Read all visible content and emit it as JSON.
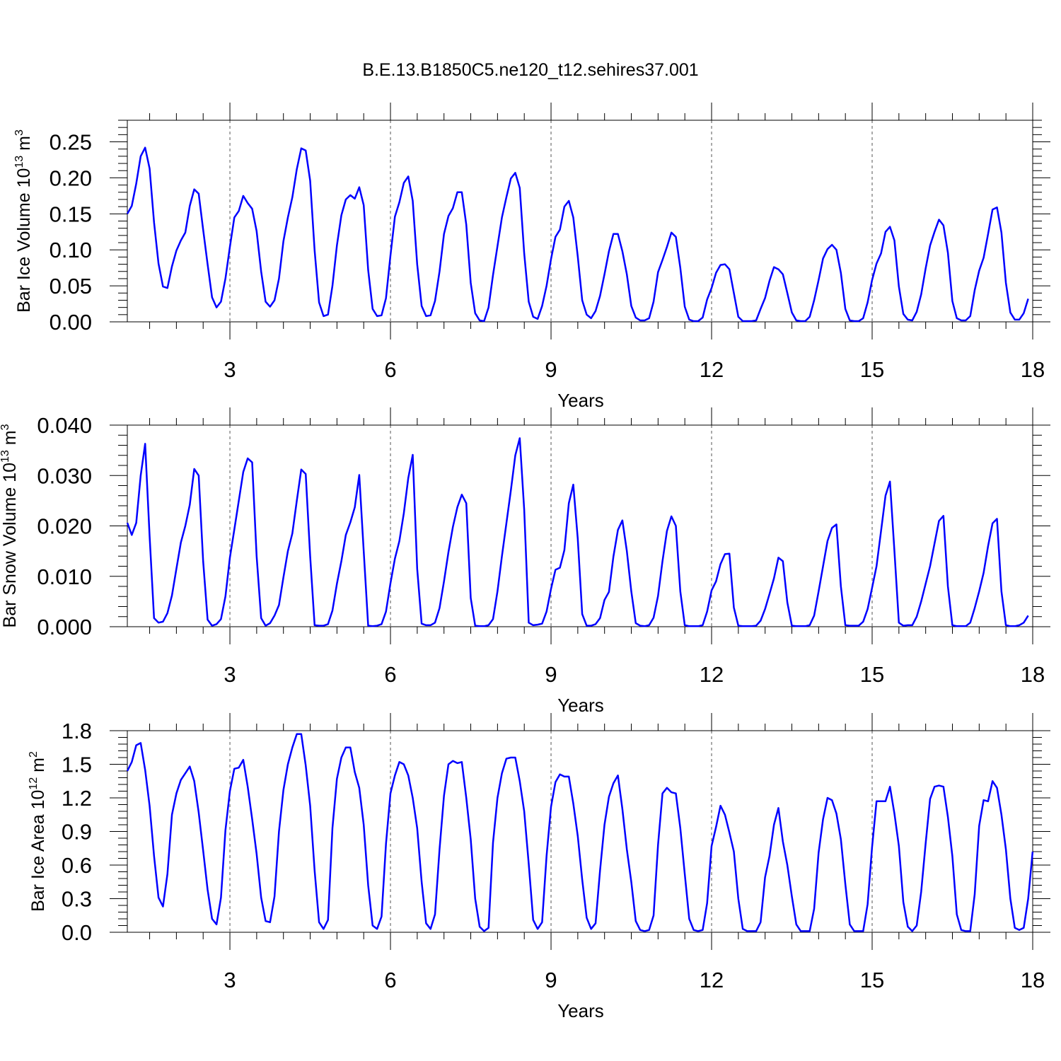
{
  "title": "B.E.13.B1850C5.ne120_t12.sehires37.001",
  "colors": {
    "series": "#0000ff",
    "axis": "#000000",
    "grid": "#555555"
  },
  "chart_data": [
    {
      "type": "line",
      "xlabel": "Years",
      "ylabel": {
        "main": "Bar Ice Volume 10",
        "sup": "13",
        "unit": " m",
        "unit_sup": "3"
      },
      "xlim": [
        1.083,
        18.0
      ],
      "ylim": [
        0,
        0.28
      ],
      "xticks": [
        3,
        6,
        9,
        12,
        15,
        18
      ],
      "xtick_labels": [
        "3",
        "6",
        "9",
        "12",
        "15",
        "18"
      ],
      "yticks": [
        0.0,
        0.05,
        0.1,
        0.15,
        0.2,
        0.25
      ],
      "ytick_labels": [
        "0.00",
        "0.05",
        "0.10",
        "0.15",
        "0.20",
        "0.25"
      ],
      "grid": "vertical dashed at major x ticks",
      "series": [
        {
          "x0": 1.083,
          "dx": 0.08333,
          "values": [
            0.15,
            0.161,
            0.192,
            0.23,
            0.242,
            0.213,
            0.138,
            0.081,
            0.049,
            0.047,
            0.077,
            0.099,
            0.113,
            0.124,
            0.161,
            0.184,
            0.178,
            0.128,
            0.08,
            0.034,
            0.02,
            0.028,
            0.06,
            0.104,
            0.145,
            0.154,
            0.175,
            0.165,
            0.157,
            0.126,
            0.07,
            0.028,
            0.021,
            0.03,
            0.06,
            0.112,
            0.145,
            0.173,
            0.212,
            0.241,
            0.238,
            0.196,
            0.099,
            0.027,
            0.008,
            0.01,
            0.05,
            0.106,
            0.148,
            0.17,
            0.176,
            0.171,
            0.187,
            0.162,
            0.072,
            0.018,
            0.008,
            0.009,
            0.033,
            0.092,
            0.146,
            0.166,
            0.193,
            0.202,
            0.168,
            0.08,
            0.022,
            0.008,
            0.009,
            0.029,
            0.07,
            0.122,
            0.147,
            0.158,
            0.18,
            0.18,
            0.135,
            0.054,
            0.012,
            0.002,
            0.001,
            0.02,
            0.065,
            0.105,
            0.145,
            0.173,
            0.199,
            0.207,
            0.186,
            0.095,
            0.028,
            0.007,
            0.004,
            0.022,
            0.05,
            0.087,
            0.118,
            0.128,
            0.16,
            0.168,
            0.145,
            0.091,
            0.03,
            0.01,
            0.005,
            0.015,
            0.036,
            0.066,
            0.098,
            0.122,
            0.122,
            0.098,
            0.066,
            0.022,
            0.006,
            0.002,
            0.002,
            0.005,
            0.028,
            0.069,
            0.086,
            0.104,
            0.124,
            0.118,
            0.075,
            0.021,
            0.003,
            0.001,
            0.001,
            0.006,
            0.031,
            0.047,
            0.068,
            0.079,
            0.08,
            0.073,
            0.04,
            0.007,
            0.001,
            0.001,
            0.001,
            0.002,
            0.018,
            0.033,
            0.057,
            0.076,
            0.073,
            0.066,
            0.04,
            0.013,
            0.002,
            0.001,
            0.001,
            0.007,
            0.03,
            0.058,
            0.088,
            0.101,
            0.107,
            0.1,
            0.068,
            0.018,
            0.002,
            0.001,
            0.001,
            0.005,
            0.027,
            0.058,
            0.081,
            0.095,
            0.125,
            0.132,
            0.113,
            0.049,
            0.011,
            0.003,
            0.002,
            0.014,
            0.038,
            0.074,
            0.106,
            0.125,
            0.142,
            0.134,
            0.096,
            0.029,
            0.005,
            0.002,
            0.002,
            0.008,
            0.044,
            0.071,
            0.089,
            0.122,
            0.156,
            0.159,
            0.124,
            0.054,
            0.013,
            0.003,
            0.003,
            0.012,
            0.032
          ]
        }
      ]
    },
    {
      "type": "line",
      "xlabel": "Years",
      "ylabel": {
        "main": "Bar Snow Volume 10",
        "sup": "13",
        "unit": " m",
        "unit_sup": "3"
      },
      "xlim": [
        1.083,
        18.0
      ],
      "ylim": [
        0,
        0.04
      ],
      "xticks": [
        3,
        6,
        9,
        12,
        15,
        18
      ],
      "xtick_labels": [
        "3",
        "6",
        "9",
        "12",
        "15",
        "18"
      ],
      "yticks": [
        0.0,
        0.01,
        0.02,
        0.03,
        0.04
      ],
      "ytick_labels": [
        "0.000",
        "0.010",
        "0.020",
        "0.030",
        "0.040"
      ],
      "grid": "vertical dashed at major x ticks",
      "series": [
        {
          "x0": 1.083,
          "dx": 0.08333,
          "values": [
            0.0206,
            0.0182,
            0.0206,
            0.03,
            0.0363,
            0.018,
            0.0017,
            0.0008,
            0.001,
            0.0027,
            0.0062,
            0.0115,
            0.0167,
            0.02,
            0.0242,
            0.0313,
            0.03,
            0.013,
            0.0014,
            0.0002,
            0.0005,
            0.0015,
            0.006,
            0.0137,
            0.0193,
            0.025,
            0.0307,
            0.0334,
            0.0326,
            0.014,
            0.0017,
            0.0002,
            0.0007,
            0.0022,
            0.0043,
            0.0098,
            0.015,
            0.0185,
            0.025,
            0.0312,
            0.0303,
            0.014,
            0.0003,
            0.0002,
            0.0002,
            0.0005,
            0.0032,
            0.0085,
            0.013,
            0.0182,
            0.0207,
            0.0237,
            0.0301,
            0.015,
            0.0002,
            0.0001,
            0.0002,
            0.0005,
            0.003,
            0.0086,
            0.0135,
            0.017,
            0.0225,
            0.0295,
            0.0341,
            0.0115,
            0.0006,
            0.0003,
            0.0003,
            0.0008,
            0.0037,
            0.009,
            0.0148,
            0.0198,
            0.0237,
            0.0262,
            0.0245,
            0.0057,
            0.0002,
            0.0001,
            0.0001,
            0.0003,
            0.0015,
            0.007,
            0.014,
            0.0205,
            0.027,
            0.034,
            0.0374,
            0.0232,
            0.0008,
            0.0003,
            0.0004,
            0.0006,
            0.003,
            0.0075,
            0.0113,
            0.0117,
            0.0152,
            0.0245,
            0.0282,
            0.0175,
            0.0025,
            0.0002,
            0.0002,
            0.0005,
            0.0017,
            0.0053,
            0.0069,
            0.0139,
            0.0192,
            0.0211,
            0.015,
            0.007,
            0.0007,
            0.0002,
            0.0001,
            0.0003,
            0.0018,
            0.0061,
            0.013,
            0.019,
            0.0219,
            0.02,
            0.007,
            0.0003,
            0.0001,
            0.0001,
            0.0001,
            0.0003,
            0.003,
            0.0072,
            0.009,
            0.0124,
            0.0144,
            0.0145,
            0.0038,
            0.0002,
            0.0001,
            0.0001,
            0.0001,
            0.0002,
            0.0012,
            0.0035,
            0.0065,
            0.0096,
            0.0137,
            0.013,
            0.0048,
            0.0002,
            0.0001,
            0.0001,
            0.0001,
            0.0003,
            0.0022,
            0.007,
            0.012,
            0.017,
            0.0196,
            0.0203,
            0.008,
            0.0003,
            0.0002,
            0.0002,
            0.0002,
            0.001,
            0.0035,
            0.0077,
            0.012,
            0.019,
            0.026,
            0.0288,
            0.015,
            0.0008,
            0.0002,
            0.0003,
            0.0003,
            0.002,
            0.005,
            0.0085,
            0.012,
            0.0165,
            0.021,
            0.022,
            0.008,
            0.0003,
            0.0001,
            0.0001,
            0.0001,
            0.0008,
            0.0037,
            0.007,
            0.0107,
            0.016,
            0.0205,
            0.0214,
            0.007,
            0.0003,
            0.0001,
            0.0001,
            0.0003,
            0.0008,
            0.0022
          ]
        }
      ]
    },
    {
      "type": "line",
      "xlabel": "Years",
      "ylabel": {
        "main": "Bar Ice Area 10",
        "sup": "12",
        "unit": " m",
        "unit_sup": "2"
      },
      "xlim": [
        1.083,
        18.0
      ],
      "ylim": [
        0,
        1.8
      ],
      "xticks": [
        3,
        6,
        9,
        12,
        15,
        18
      ],
      "xtick_labels": [
        "3",
        "6",
        "9",
        "12",
        "15",
        "18"
      ],
      "yticks": [
        0.0,
        0.3,
        0.6,
        0.9,
        1.2,
        1.5,
        1.8
      ],
      "ytick_labels": [
        "0.0",
        "0.3",
        "0.6",
        "0.9",
        "1.2",
        "1.5",
        "1.8"
      ],
      "grid": "vertical dashed at major x ticks",
      "series": [
        {
          "x0": 1.083,
          "dx": 0.08333,
          "values": [
            1.44,
            1.52,
            1.67,
            1.69,
            1.45,
            1.13,
            0.68,
            0.31,
            0.23,
            0.52,
            1.05,
            1.24,
            1.36,
            1.42,
            1.48,
            1.35,
            1.07,
            0.73,
            0.38,
            0.12,
            0.07,
            0.31,
            0.91,
            1.26,
            1.46,
            1.47,
            1.54,
            1.3,
            1.01,
            0.7,
            0.31,
            0.1,
            0.09,
            0.32,
            0.9,
            1.27,
            1.5,
            1.65,
            1.77,
            1.77,
            1.49,
            1.13,
            0.55,
            0.09,
            0.03,
            0.11,
            0.93,
            1.37,
            1.56,
            1.65,
            1.65,
            1.43,
            1.29,
            0.96,
            0.42,
            0.06,
            0.03,
            0.14,
            0.79,
            1.24,
            1.4,
            1.52,
            1.5,
            1.4,
            1.2,
            0.93,
            0.45,
            0.08,
            0.03,
            0.16,
            0.74,
            1.22,
            1.5,
            1.53,
            1.51,
            1.52,
            1.2,
            0.83,
            0.3,
            0.05,
            0.01,
            0.04,
            0.8,
            1.2,
            1.42,
            1.55,
            1.56,
            1.56,
            1.35,
            1.08,
            0.61,
            0.11,
            0.03,
            0.09,
            0.68,
            1.12,
            1.34,
            1.41,
            1.39,
            1.39,
            1.15,
            0.86,
            0.47,
            0.13,
            0.03,
            0.08,
            0.55,
            0.96,
            1.21,
            1.33,
            1.4,
            1.1,
            0.74,
            0.45,
            0.1,
            0.02,
            0.01,
            0.02,
            0.15,
            0.78,
            1.24,
            1.29,
            1.25,
            1.24,
            0.93,
            0.52,
            0.12,
            0.02,
            0.01,
            0.02,
            0.26,
            0.77,
            0.94,
            1.13,
            1.05,
            0.89,
            0.72,
            0.3,
            0.03,
            0.01,
            0.01,
            0.01,
            0.09,
            0.49,
            0.68,
            0.96,
            1.11,
            0.81,
            0.6,
            0.32,
            0.07,
            0.01,
            0.01,
            0.01,
            0.21,
            0.71,
            1.01,
            1.2,
            1.18,
            1.06,
            0.83,
            0.43,
            0.07,
            0.01,
            0.01,
            0.01,
            0.25,
            0.76,
            1.17,
            1.17,
            1.17,
            1.3,
            1.06,
            0.77,
            0.27,
            0.05,
            0.01,
            0.06,
            0.36,
            0.79,
            1.19,
            1.3,
            1.31,
            1.3,
            1.03,
            0.68,
            0.16,
            0.02,
            0.01,
            0.01,
            0.34,
            0.95,
            1.18,
            1.17,
            1.35,
            1.29,
            1.05,
            0.74,
            0.3,
            0.04,
            0.02,
            0.04,
            0.3,
            0.72
          ]
        }
      ]
    }
  ]
}
